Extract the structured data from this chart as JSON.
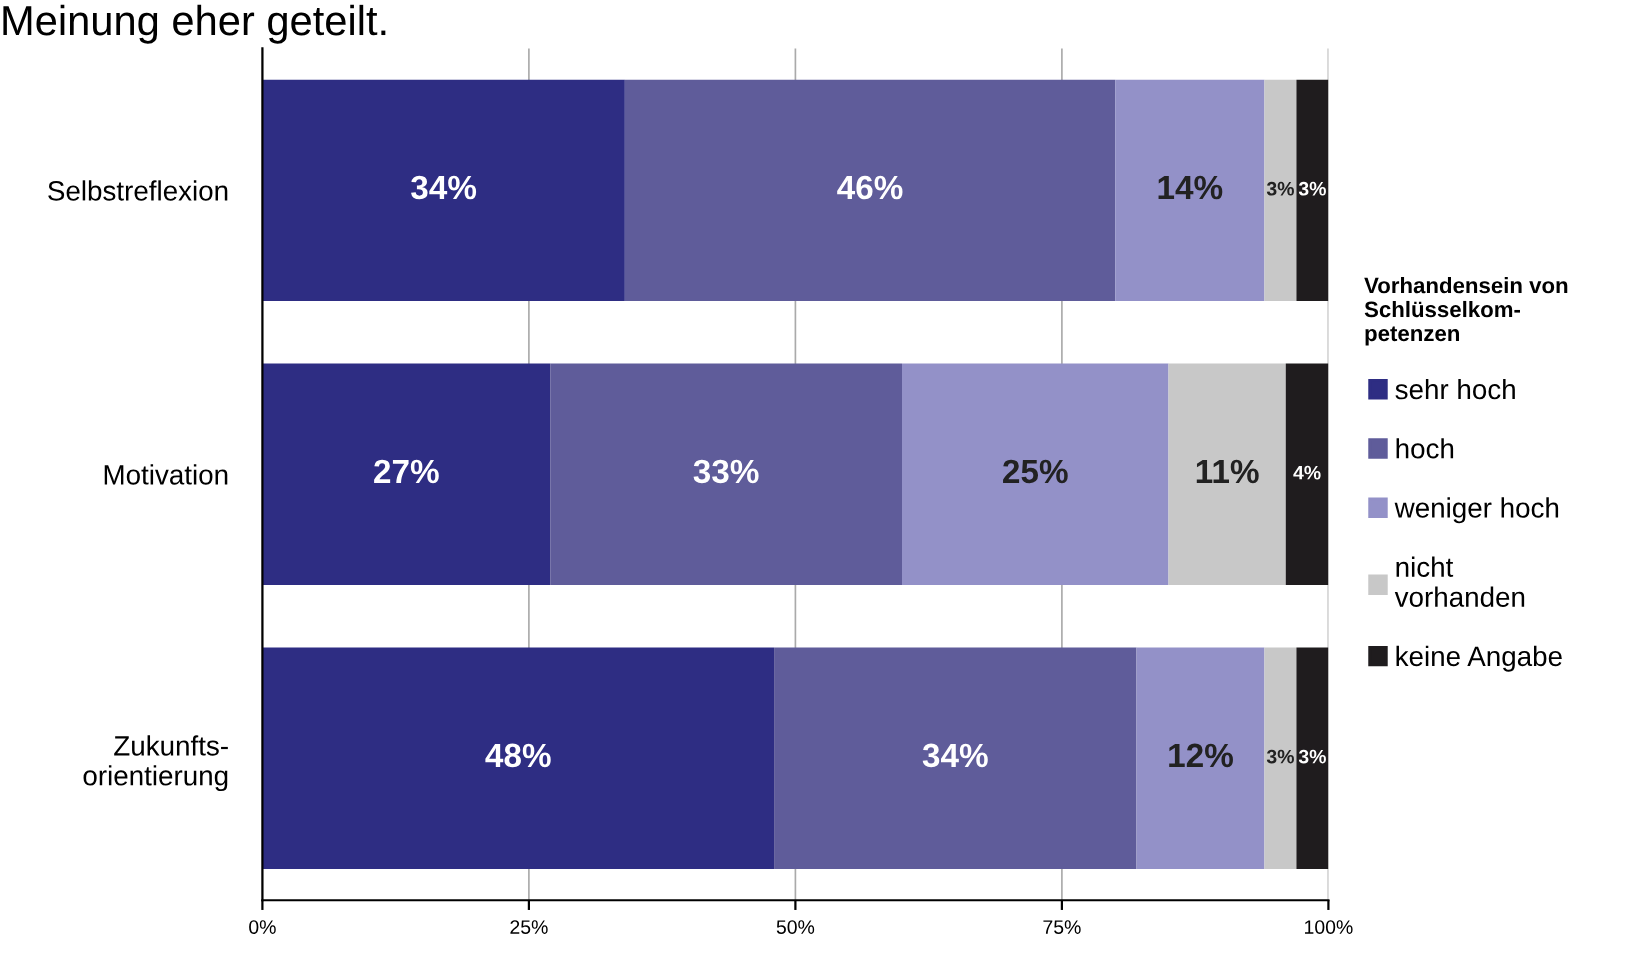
{
  "chart_data": {
    "type": "bar",
    "orientation": "horizontal",
    "stacked": true,
    "title": "Meinung eher geteilt.",
    "categories": [
      "Selbstreflexion",
      "Motivation",
      "Zukunfts-\norientierung"
    ],
    "series": [
      {
        "name": "sehr hoch",
        "color": "#2e2d83",
        "values": [
          34,
          27,
          48
        ],
        "value_labels": [
          "34%",
          "27%",
          "48%"
        ]
      },
      {
        "name": "hoch",
        "color": "#5f5c9a",
        "values": [
          46,
          33,
          34
        ],
        "value_labels": [
          "46%",
          "33%",
          "34%"
        ]
      },
      {
        "name": "weniger hoch",
        "color": "#9391c8",
        "values": [
          14,
          25,
          12
        ],
        "value_labels": [
          "14%",
          "25%",
          "12%"
        ]
      },
      {
        "name": "nicht\nvorhanden",
        "color": "#c8c8c8",
        "values": [
          3,
          11,
          3
        ],
        "value_labels": [
          "3%",
          "11%",
          "3%"
        ]
      },
      {
        "name": "keine Angabe",
        "color": "#1f1c1e",
        "values": [
          3,
          4,
          3
        ],
        "value_labels": [
          "3%",
          "4%",
          "3%"
        ]
      }
    ],
    "xlim": [
      0,
      100
    ],
    "xticks": [
      {
        "value": 0,
        "label": "0%"
      },
      {
        "value": 25,
        "label": "25%"
      },
      {
        "value": 50,
        "label": "50%"
      },
      {
        "value": 75,
        "label": "75%"
      },
      {
        "value": 100,
        "label": "100%"
      }
    ],
    "grid": "x",
    "legend": "right",
    "legend_title": "Vorhandensein von\nSchlüsselkom-\npetenzen"
  }
}
